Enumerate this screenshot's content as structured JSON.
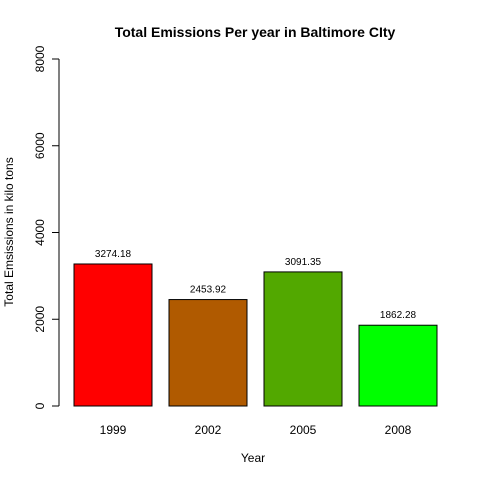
{
  "chart_data": {
    "type": "bar",
    "title": "Total Emissions Per year in Baltimore CIty",
    "xlabel": "Year",
    "ylabel": "Total Emsissions in kilo tons",
    "categories": [
      "1999",
      "2002",
      "2005",
      "2008"
    ],
    "values": [
      3274.18,
      2453.92,
      3091.35,
      1862.28
    ],
    "data_labels": [
      "3274.18",
      "2453.92",
      "3091.35",
      "1862.28"
    ],
    "colors": [
      "#FF0000",
      "#B05A00",
      "#52A800",
      "#00FF00"
    ],
    "ylim": [
      0,
      8000
    ],
    "yticks": [
      0,
      2000,
      4000,
      6000,
      8000
    ],
    "grid": false,
    "legend": "none"
  }
}
